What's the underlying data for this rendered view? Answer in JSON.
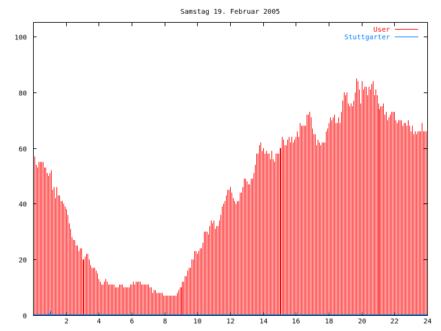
{
  "chart_data": {
    "type": "bar",
    "title": "Samstag 19. Februar 2005",
    "xlabel": "",
    "ylabel": "",
    "xlim": [
      0,
      24
    ],
    "ylim": [
      0,
      105
    ],
    "x_step_hours": 0.08333,
    "xticks": [
      "2",
      "4",
      "6",
      "8",
      "10",
      "12",
      "14",
      "16",
      "18",
      "20",
      "22",
      "24"
    ],
    "xtick_values": [
      2,
      4,
      6,
      8,
      10,
      12,
      14,
      16,
      18,
      20,
      22,
      24
    ],
    "yticks": [
      "0",
      "20",
      "40",
      "60",
      "80",
      "100"
    ],
    "ytick_values": [
      0,
      20,
      40,
      60,
      80,
      100
    ],
    "grid": false,
    "legend_position": "top-right",
    "series": [
      {
        "name": "User",
        "style": "impulses",
        "color": "#ff0000",
        "values": [
          61,
          57,
          54,
          53,
          55,
          55,
          55,
          55,
          53,
          53,
          51,
          50,
          51,
          52,
          45,
          46,
          42,
          46,
          43,
          43,
          41,
          41,
          40,
          39,
          38,
          36,
          33,
          31,
          28,
          27,
          27,
          25,
          25,
          23,
          24,
          24,
          20,
          20,
          21,
          22,
          22,
          20,
          18,
          17,
          17,
          17,
          16,
          15,
          13,
          12,
          11,
          11,
          12,
          13,
          12,
          11,
          11,
          11,
          11,
          11,
          10,
          10,
          10,
          11,
          11,
          11,
          10,
          10,
          10,
          10,
          10,
          11,
          11,
          12,
          11,
          12,
          12,
          12,
          12,
          11,
          11,
          11,
          11,
          11,
          11,
          10,
          10,
          8,
          9,
          9,
          8,
          8,
          8,
          8,
          8,
          7,
          7,
          7,
          7,
          7,
          7,
          7,
          7,
          7,
          7,
          8,
          9,
          10,
          10,
          12,
          12,
          14,
          14,
          16,
          17,
          17,
          20,
          20,
          23,
          23,
          22,
          23,
          24,
          24,
          26,
          30,
          30,
          30,
          29,
          32,
          34,
          33,
          34,
          31,
          32,
          32,
          34,
          36,
          39,
          40,
          41,
          43,
          45,
          45,
          46,
          44,
          42,
          41,
          40,
          41,
          41,
          44,
          44,
          46,
          49,
          49,
          48,
          47,
          47,
          49,
          49,
          51,
          54,
          58,
          58,
          61,
          62,
          59,
          60,
          58,
          59,
          58,
          58,
          56,
          59,
          56,
          55,
          58,
          58,
          58,
          60,
          60,
          64,
          63,
          61,
          61,
          63,
          64,
          62,
          64,
          62,
          63,
          64,
          66,
          64,
          69,
          68,
          68,
          68,
          68,
          72,
          72,
          73,
          71,
          67,
          65,
          65,
          61,
          63,
          62,
          61,
          62,
          62,
          62,
          66,
          67,
          69,
          71,
          70,
          71,
          72,
          69,
          69,
          71,
          69,
          73,
          77,
          80,
          79,
          80,
          76,
          75,
          76,
          75,
          77,
          80,
          85,
          84,
          81,
          76,
          84,
          81,
          82,
          82,
          79,
          82,
          81,
          83,
          84,
          79,
          81,
          79,
          76,
          74,
          75,
          75,
          76,
          72,
          73,
          70,
          71,
          72,
          73,
          73,
          73,
          70,
          69,
          70,
          70,
          70,
          68,
          69,
          69,
          68,
          70,
          68,
          66,
          68,
          65,
          66,
          65,
          66,
          66,
          66,
          69,
          66,
          66,
          66
        ]
      },
      {
        "name": "Stuttgarter",
        "style": "lines",
        "color": "#0080ff",
        "x": [
          0,
          1.0,
          1.05,
          1.1,
          24
        ],
        "y": [
          0,
          0,
          1,
          0,
          0
        ]
      }
    ]
  }
}
